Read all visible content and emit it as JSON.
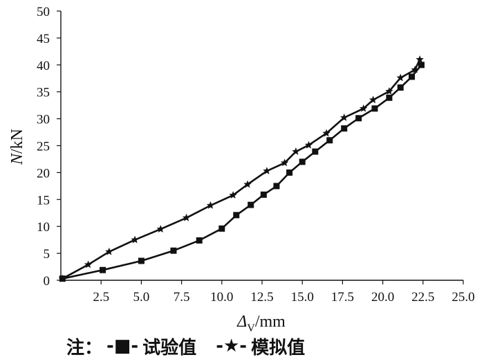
{
  "chart_data": {
    "type": "line",
    "xlabel": {
      "main": "Δ",
      "sub": "V",
      "unit": "/mm"
    },
    "ylabel": {
      "italic": "N",
      "rest": "/kN"
    },
    "xlim": [
      0,
      25
    ],
    "ylim": [
      0,
      50
    ],
    "x_ticks": [
      "2.5",
      "5.0",
      "7.5",
      "10.0",
      "12.5",
      "15.0",
      "17.5",
      "20.0",
      "22.5",
      "25.0"
    ],
    "y_ticks": [
      "0",
      "5",
      "10",
      "15",
      "20",
      "25",
      "30",
      "35",
      "40",
      "45",
      "50"
    ],
    "series": [
      {
        "name": "试验值",
        "marker": "square",
        "points": [
          [
            0.1,
            0.3
          ],
          [
            2.6,
            1.9
          ],
          [
            5.0,
            3.6
          ],
          [
            7.0,
            5.5
          ],
          [
            8.6,
            7.4
          ],
          [
            10.0,
            9.6
          ],
          [
            10.9,
            12.1
          ],
          [
            11.8,
            14.0
          ],
          [
            12.6,
            15.9
          ],
          [
            13.4,
            17.5
          ],
          [
            14.2,
            20.0
          ],
          [
            15.0,
            22.0
          ],
          [
            15.8,
            23.9
          ],
          [
            16.7,
            26.0
          ],
          [
            17.6,
            28.2
          ],
          [
            18.5,
            30.1
          ],
          [
            19.5,
            31.9
          ],
          [
            20.4,
            33.9
          ],
          [
            21.1,
            35.8
          ],
          [
            21.8,
            37.8
          ],
          [
            22.4,
            40.0
          ]
        ]
      },
      {
        "name": "模拟值",
        "marker": "star",
        "points": [
          [
            0.1,
            0.3
          ],
          [
            1.7,
            2.9
          ],
          [
            3.0,
            5.3
          ],
          [
            4.6,
            7.5
          ],
          [
            6.2,
            9.5
          ],
          [
            7.8,
            11.6
          ],
          [
            9.3,
            13.9
          ],
          [
            10.7,
            15.8
          ],
          [
            11.6,
            17.8
          ],
          [
            12.8,
            20.3
          ],
          [
            13.9,
            21.8
          ],
          [
            14.6,
            23.9
          ],
          [
            15.4,
            25.1
          ],
          [
            16.5,
            27.3
          ],
          [
            17.6,
            30.2
          ],
          [
            18.8,
            31.9
          ],
          [
            19.4,
            33.5
          ],
          [
            20.4,
            35.1
          ],
          [
            21.1,
            37.6
          ],
          [
            22.0,
            39.1
          ],
          [
            22.3,
            41.0
          ]
        ]
      }
    ]
  },
  "legend": {
    "prefix": "注：",
    "items": [
      {
        "symbol": "-■-",
        "label": "试验值"
      },
      {
        "symbol": "-★-",
        "label": "模拟值"
      }
    ]
  }
}
